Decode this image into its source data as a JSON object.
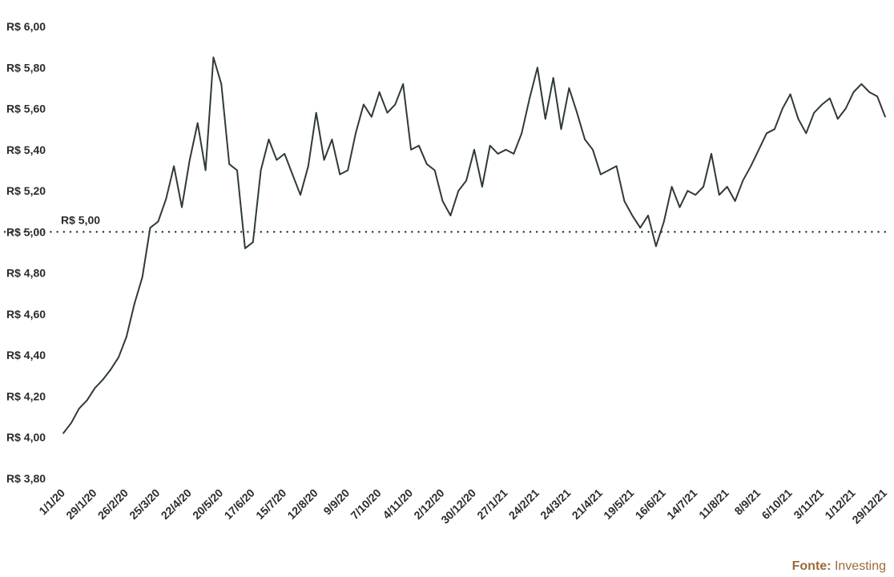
{
  "chart_data": {
    "type": "line",
    "title": "",
    "xlabel": "",
    "ylabel": "",
    "ylim": [
      3.8,
      6.0
    ],
    "y_ticks": [
      3.8,
      4.0,
      4.2,
      4.4,
      4.6,
      4.8,
      5.0,
      5.2,
      5.4,
      5.6,
      5.8,
      6.0
    ],
    "y_tick_labels": [
      "R$ 3,80",
      "R$ 4,00",
      "R$ 4,20",
      "R$ 4,40",
      "R$ 4,60",
      "R$ 4,80",
      "R$ 5,00",
      "R$ 5,20",
      "R$ 5,40",
      "R$ 5,60",
      "R$ 5,80",
      "R$ 6,00"
    ],
    "x_tick_labels": [
      "1/1/20",
      "29/1/20",
      "26/2/20",
      "25/3/20",
      "22/4/20",
      "20/5/20",
      "17/6/20",
      "15/7/20",
      "12/8/20",
      "9/9/20",
      "7/10/20",
      "4/11/20",
      "2/12/20",
      "30/12/20",
      "27/1/21",
      "24/2/21",
      "24/3/21",
      "21/4/21",
      "19/5/21",
      "16/6/21",
      "14/7/21",
      "11/8/21",
      "8/9/21",
      "6/10/21",
      "3/11/21",
      "1/12/21",
      "29/12/21"
    ],
    "reference_line": {
      "value": 5.0,
      "label": "R$ 5,00",
      "style": "dotted"
    },
    "grid": false,
    "line_color": "#2f3b35",
    "series": [
      {
        "x": [
          "1/1/20",
          "8/1/20",
          "15/1/20",
          "22/1/20",
          "29/1/20",
          "5/2/20",
          "12/2/20",
          "19/2/20",
          "26/2/20",
          "4/3/20",
          "11/3/20",
          "18/3/20",
          "25/3/20",
          "1/4/20",
          "8/4/20",
          "15/4/20",
          "22/4/20",
          "29/4/20",
          "6/5/20",
          "13/5/20",
          "20/5/20",
          "27/5/20",
          "3/6/20",
          "10/6/20",
          "17/6/20",
          "24/6/20",
          "1/7/20",
          "8/7/20",
          "15/7/20",
          "22/7/20",
          "29/7/20",
          "5/8/20",
          "12/8/20",
          "19/8/20",
          "26/8/20",
          "2/9/20",
          "9/9/20",
          "16/9/20",
          "23/9/20",
          "30/9/20",
          "7/10/20",
          "14/10/20",
          "21/10/20",
          "28/10/20",
          "4/11/20",
          "11/11/20",
          "18/11/20",
          "25/11/20",
          "2/12/20",
          "9/12/20",
          "16/12/20",
          "23/12/20",
          "30/12/20",
          "6/1/21",
          "13/1/21",
          "20/1/21",
          "27/1/21",
          "3/2/21",
          "10/2/21",
          "17/2/21",
          "24/2/21",
          "3/3/21",
          "10/3/21",
          "17/3/21",
          "24/3/21",
          "31/3/21",
          "7/4/21",
          "14/4/21",
          "21/4/21",
          "28/4/21",
          "5/5/21",
          "12/5/21",
          "19/5/21",
          "26/5/21",
          "2/6/21",
          "9/6/21",
          "16/6/21",
          "23/6/21",
          "30/6/21",
          "7/7/21",
          "14/7/21",
          "21/7/21",
          "28/7/21",
          "4/8/21",
          "11/8/21",
          "18/8/21",
          "25/8/21",
          "1/9/21",
          "8/9/21",
          "15/9/21",
          "22/9/21",
          "29/9/21",
          "6/10/21",
          "13/10/21",
          "20/10/21",
          "27/10/21",
          "3/11/21",
          "10/11/21",
          "17/11/21",
          "24/11/21",
          "1/12/21",
          "8/12/21",
          "15/12/21",
          "22/12/21",
          "29/12/21"
        ],
        "y": [
          4.02,
          4.07,
          4.14,
          4.18,
          4.24,
          4.28,
          4.33,
          4.39,
          4.49,
          4.65,
          4.78,
          5.02,
          5.05,
          5.16,
          5.32,
          5.12,
          5.35,
          5.53,
          5.3,
          5.85,
          5.72,
          5.33,
          5.3,
          4.92,
          4.95,
          5.3,
          5.45,
          5.35,
          5.38,
          5.28,
          5.18,
          5.32,
          5.58,
          5.35,
          5.45,
          5.28,
          5.3,
          5.48,
          5.62,
          5.56,
          5.68,
          5.58,
          5.62,
          5.72,
          5.4,
          5.42,
          5.33,
          5.3,
          5.15,
          5.08,
          5.2,
          5.25,
          5.4,
          5.22,
          5.42,
          5.38,
          5.4,
          5.38,
          5.48,
          5.65,
          5.8,
          5.55,
          5.75,
          5.5,
          5.7,
          5.58,
          5.45,
          5.4,
          5.28,
          5.3,
          5.32,
          5.15,
          5.08,
          5.02,
          5.08,
          4.93,
          5.05,
          5.22,
          5.12,
          5.2,
          5.18,
          5.22,
          5.38,
          5.18,
          5.22,
          5.15,
          5.25,
          5.32,
          5.4,
          5.48,
          5.5,
          5.6,
          5.67,
          5.55,
          5.48,
          5.58,
          5.62,
          5.65,
          5.55,
          5.6,
          5.68,
          5.72,
          5.68,
          5.66,
          5.56
        ]
      }
    ]
  },
  "source": {
    "prefix": "Fonte:",
    "name": "Investing"
  }
}
